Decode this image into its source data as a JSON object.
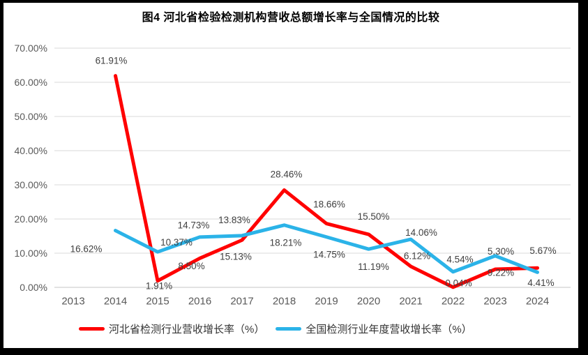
{
  "title": "图4 河北省检验检测机构营收总额增长率与全国情况的比较",
  "chart_data": {
    "type": "line",
    "categories": [
      "2013",
      "2014",
      "2015",
      "2016",
      "2017",
      "2018",
      "2019",
      "2020",
      "2021",
      "2022",
      "2023",
      "2024"
    ],
    "series": [
      {
        "name": "河北省检测行业营收增长率（%）",
        "color": "#FF0000",
        "values": [
          null,
          61.91,
          1.91,
          8.5,
          13.83,
          28.46,
          18.66,
          15.5,
          6.12,
          0.04,
          5.3,
          5.67
        ],
        "labels": [
          "",
          "61.91%",
          "1.91%",
          "8.50%",
          "13.83%",
          "28.46%",
          "18.66%",
          "15.50%",
          "6.12%",
          "0.04%",
          "5.30%",
          "5.67%"
        ]
      },
      {
        "name": "全国检测行业年度营收增长率（%）",
        "color": "#2BB3E8",
        "values": [
          null,
          16.62,
          10.37,
          14.73,
          15.13,
          18.21,
          14.75,
          11.19,
          14.06,
          4.54,
          9.22,
          4.41
        ],
        "labels": [
          "",
          "16.62%",
          "10.37%",
          "14.73%",
          "15.13%",
          "18.21%",
          "14.75%",
          "11.19%",
          "14.06%",
          "4.54%",
          "9.22%",
          "4.41%"
        ]
      }
    ],
    "title": "图4 河北省检验检测机构营收总额增长率与全国情况的比较",
    "xlabel": "",
    "ylabel": "",
    "ylim": [
      0,
      70
    ],
    "ytick_labels": [
      "0.00%",
      "10.00%",
      "20.00%",
      "30.00%",
      "40.00%",
      "50.00%",
      "60.00%",
      "70.00%"
    ],
    "grid": true,
    "legend_position": "bottom"
  },
  "style": {
    "grid_color": "#D9D9D9",
    "zero_line_color": "#C6C6C6",
    "axis_label_color": "#595959",
    "data_label_color": "#404040",
    "background": "#FFFFFF",
    "page_border": "#000000"
  }
}
